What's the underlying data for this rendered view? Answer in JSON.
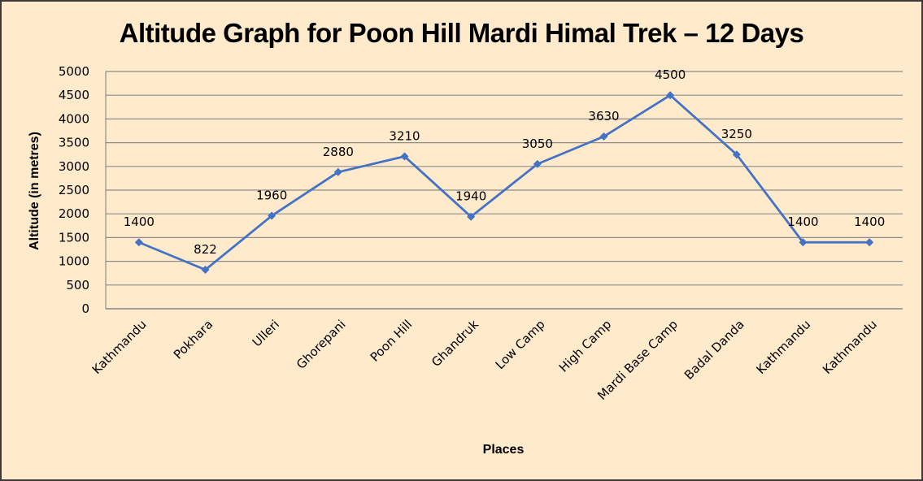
{
  "chart_data": {
    "type": "line",
    "title": "Altitude Graph for Poon Hill Mardi Himal Trek – 12 Days",
    "xlabel": "Places",
    "ylabel": "Altitude (in metres)",
    "categories": [
      "Kathmandu",
      "Pokhara",
      "Ulleri",
      "Ghorepani",
      "Poon Hill",
      "Ghandruk",
      "Low Camp",
      "High Camp",
      "Mardi Base Camp",
      "Badal Danda",
      "Kathmandu",
      "Kathmandu"
    ],
    "series": [
      {
        "name": "Altitude",
        "values": [
          1400,
          822,
          1960,
          2880,
          3210,
          1940,
          3050,
          3630,
          4500,
          3250,
          1400,
          1400
        ],
        "color": "#4472c4",
        "marker": "diamond",
        "data_labels": true
      }
    ],
    "ylim": [
      0,
      5000
    ],
    "yticks": [
      0,
      500,
      1000,
      1500,
      2000,
      2500,
      3000,
      3500,
      4000,
      4500,
      5000
    ],
    "grid": {
      "horizontal": true,
      "vertical": false
    },
    "legend": null,
    "colors": {
      "background": "#ffeacc",
      "line": "#4472c4",
      "gridline": "#8c8c8c",
      "border": "#3a3a3a"
    }
  }
}
